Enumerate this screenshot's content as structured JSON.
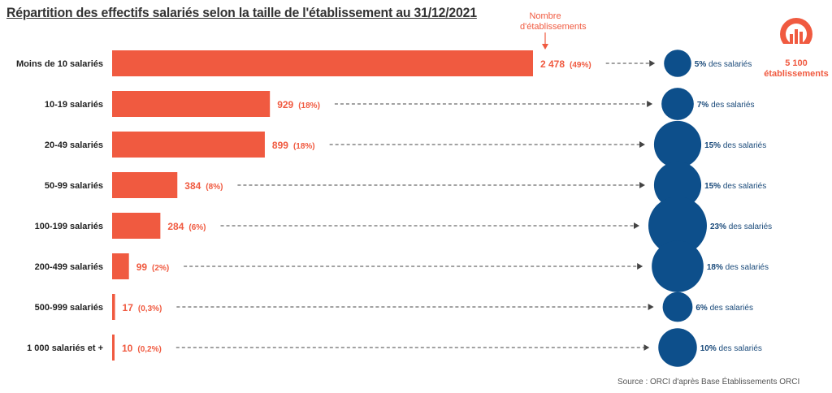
{
  "chart_data": {
    "type": "bar",
    "title": "Répartition des effectifs salariés selon la taille de l'établissement au 31/12/2021",
    "categories": [
      "Moins de 10 salariés",
      "10-19 salariés",
      "20-49 salariés",
      "50-99 salariés",
      "100-199 salariés",
      "200-499 salariés",
      "500-999 salariés",
      "1 000 salariés et +"
    ],
    "series": [
      {
        "name": "Nombre d'établissements",
        "values": [
          2478,
          929,
          899,
          384,
          284,
          99,
          17,
          10
        ],
        "value_labels": [
          "2 478",
          "929",
          "899",
          "384",
          "284",
          "99",
          "17",
          "10"
        ],
        "pct_labels": [
          "(49%)",
          "(18%)",
          "(18%)",
          "(8%)",
          "(6%)",
          "(2%)",
          "(0,3%)",
          "(0,2%)"
        ]
      },
      {
        "values": [
          5,
          7,
          15,
          15,
          23,
          18,
          6,
          10
        ],
        "value_labels": [
          "5%",
          "7%",
          "15%",
          "15%",
          "23%",
          "18%",
          "6%",
          "10%"
        ],
        "suffix": "des salariés"
      }
    ],
    "annotation": "Nombre d'établissements",
    "total": {
      "value": "5 100",
      "label": "établissements"
    },
    "colors": {
      "bars": "#f05a40",
      "bubbles": "#0d4f8b",
      "arrows": "#555555"
    },
    "orientation": "horizontal",
    "grid": false,
    "legend": "none",
    "source": "Source : ORCI d'après Base Établissements ORCI"
  },
  "logo": {
    "icon": "orci-logo-icon",
    "color": "#f05a40"
  }
}
